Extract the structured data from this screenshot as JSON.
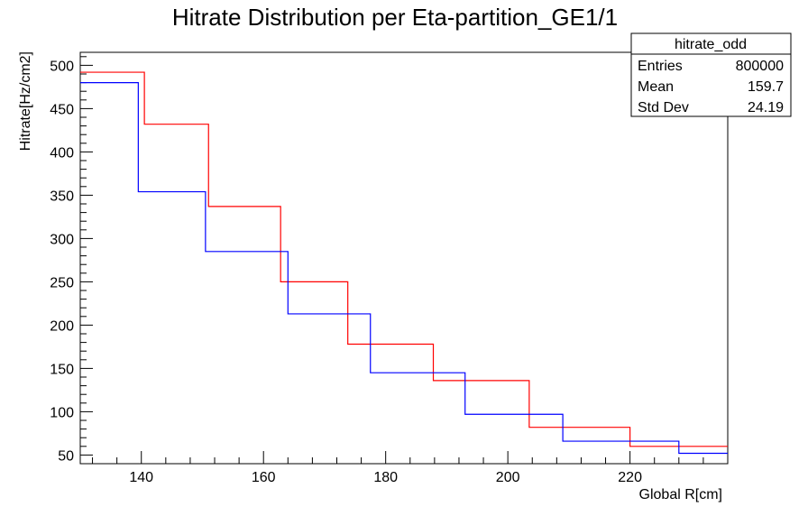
{
  "chart_data": {
    "type": "step",
    "title": "Hitrate Distribution per Eta-partition_GE1/1",
    "xlabel": "Global R[cm]",
    "ylabel": "Hitrate[Hz/cm2]",
    "xlim": [
      130,
      236
    ],
    "ylim": [
      40,
      515
    ],
    "x_ticks": [
      140,
      160,
      180,
      200,
      220
    ],
    "y_ticks": [
      50,
      100,
      150,
      200,
      250,
      300,
      350,
      400,
      450,
      500
    ],
    "grid": false,
    "series": [
      {
        "color": "#ff0000",
        "edges": [
          130,
          140.5,
          151,
          162.8,
          173.8,
          187.8,
          203.5,
          220,
          236
        ],
        "values": [
          492,
          432,
          337,
          250,
          178,
          136,
          82,
          60
        ]
      },
      {
        "color": "#0000ff",
        "edges": [
          130,
          139.5,
          150.5,
          164,
          177.5,
          193,
          209,
          228,
          236
        ],
        "values": [
          480,
          354,
          285,
          213,
          145,
          97,
          66,
          52
        ]
      }
    ],
    "stats_box": {
      "name": "hitrate_odd",
      "rows": [
        {
          "label": "Entries",
          "value": "800000"
        },
        {
          "label": "Mean",
          "value": "159.7"
        },
        {
          "label": "Std Dev",
          "value": "24.19"
        }
      ]
    }
  }
}
